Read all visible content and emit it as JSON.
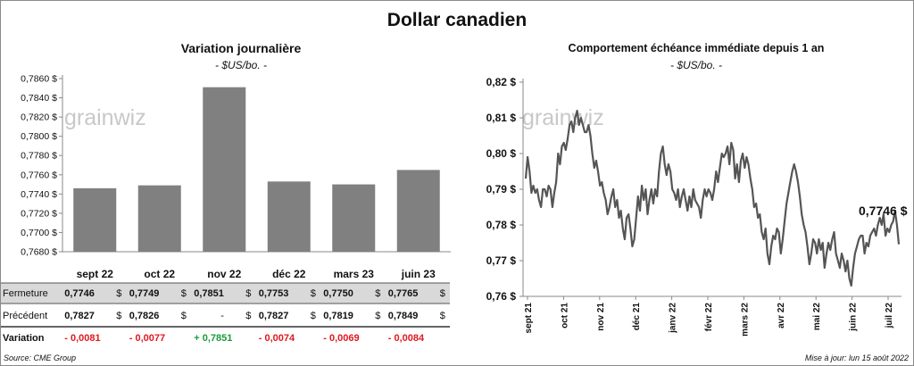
{
  "main_title": "Dollar canadien",
  "left_chart": {
    "title": "Variation  journalière",
    "subtitle": "- $US/bo. -",
    "watermark": "grainwiz"
  },
  "right_chart": {
    "title": "Comportement échéance immédiate depuis 1 an",
    "subtitle": "- $US/bo. -",
    "watermark": "grainwiz",
    "last_value_label": "0,7746 $"
  },
  "table": {
    "rows": [
      {
        "label": "Fermeture",
        "values": [
          "0,7746",
          "0,7749",
          "0,7851",
          "0,7753",
          "0,7750",
          "0,7765"
        ],
        "suffix": "$"
      },
      {
        "label": "Précédent",
        "values": [
          "0,7827",
          "0,7826",
          "-",
          "0,7827",
          "0,7819",
          "0,7849"
        ],
        "suffix": "$"
      },
      {
        "label": "Variation",
        "values": [
          "- 0,0081",
          "- 0,0077",
          "+ 0,7851",
          "- 0,0074",
          "- 0,0069",
          "- 0,0084"
        ]
      }
    ]
  },
  "footer": {
    "source": "Source: CME Group",
    "update": "Mise à jour: lun 15 août 2022"
  },
  "colors": {
    "bar": "#808080",
    "line": "#555555",
    "negative": "#e0191e",
    "positive": "#1a9b3a",
    "table_band": "#d9d9d9"
  },
  "chart_data": [
    {
      "type": "bar",
      "categories": [
        "sept 22",
        "oct 22",
        "nov 22",
        "déc 22",
        "mars 23",
        "juin 23"
      ],
      "values": [
        0.7746,
        0.7749,
        0.7851,
        0.7753,
        0.775,
        0.7765
      ],
      "ylim": [
        0.768,
        0.786
      ],
      "yticks": [
        "0,7680 $",
        "0,7700 $",
        "0,7720 $",
        "0,7740 $",
        "0,7760 $",
        "0,7780 $",
        "0,7800 $",
        "0,7820 $",
        "0,7840 $",
        "0,7860 $"
      ],
      "grid": false
    },
    {
      "type": "line",
      "x_labels": [
        "sept 21",
        "oct 21",
        "nov 21",
        "déc 21",
        "janv 22",
        "févr 22",
        "mars 22",
        "avr 22",
        "mai 22",
        "juin 22",
        "juil 22"
      ],
      "ylim": [
        0.76,
        0.82
      ],
      "yticks": [
        "0,76 $",
        "0,77 $",
        "0,78 $",
        "0,79 $",
        "0,80 $",
        "0,81 $",
        "0,82 $"
      ],
      "grid": false,
      "series": [
        {
          "values": [
            0.793,
            0.799,
            0.795,
            0.789,
            0.791,
            0.789,
            0.79,
            0.787,
            0.785,
            0.79,
            0.79,
            0.788,
            0.791,
            0.79,
            0.785,
            0.789,
            0.792,
            0.8,
            0.797,
            0.802,
            0.803,
            0.801,
            0.804,
            0.808,
            0.809,
            0.806,
            0.81,
            0.812,
            0.808,
            0.81,
            0.808,
            0.806,
            0.806,
            0.808,
            0.805,
            0.8,
            0.796,
            0.798,
            0.795,
            0.791,
            0.792,
            0.789,
            0.787,
            0.783,
            0.785,
            0.788,
            0.79,
            0.785,
            0.787,
            0.782,
            0.784,
            0.779,
            0.776,
            0.782,
            0.783,
            0.779,
            0.774,
            0.776,
            0.782,
            0.788,
            0.784,
            0.791,
            0.787,
            0.79,
            0.783,
            0.787,
            0.79,
            0.786,
            0.79,
            0.788,
            0.795,
            0.8,
            0.802,
            0.797,
            0.794,
            0.797,
            0.795,
            0.79,
            0.789,
            0.787,
            0.79,
            0.785,
            0.788,
            0.79,
            0.787,
            0.784,
            0.788,
            0.785,
            0.79,
            0.787,
            0.786,
            0.785,
            0.782,
            0.787,
            0.79,
            0.788,
            0.79,
            0.789,
            0.787,
            0.79,
            0.795,
            0.792,
            0.796,
            0.8,
            0.799,
            0.8,
            0.802,
            0.797,
            0.803,
            0.801,
            0.793,
            0.797,
            0.792,
            0.798,
            0.8,
            0.796,
            0.799,
            0.797,
            0.793,
            0.79,
            0.785,
            0.786,
            0.782,
            0.783,
            0.778,
            0.776,
            0.779,
            0.772,
            0.769,
            0.774,
            0.777,
            0.776,
            0.779,
            0.778,
            0.772,
            0.776,
            0.781,
            0.786,
            0.789,
            0.792,
            0.795,
            0.797,
            0.795,
            0.792,
            0.788,
            0.783,
            0.78,
            0.778,
            0.774,
            0.769,
            0.772,
            0.776,
            0.775,
            0.772,
            0.776,
            0.773,
            0.775,
            0.768,
            0.772,
            0.775,
            0.773,
            0.776,
            0.778,
            0.772,
            0.77,
            0.768,
            0.772,
            0.77,
            0.767,
            0.77,
            0.765,
            0.763,
            0.768,
            0.772,
            0.774,
            0.776,
            0.777,
            0.777,
            0.772,
            0.775,
            0.774,
            0.777,
            0.778,
            0.779,
            0.777,
            0.78,
            0.782,
            0.78,
            0.783,
            0.777,
            0.779,
            0.778,
            0.78,
            0.781,
            0.784,
            0.78,
            0.7746
          ]
        }
      ],
      "last_value": 0.7746
    }
  ]
}
